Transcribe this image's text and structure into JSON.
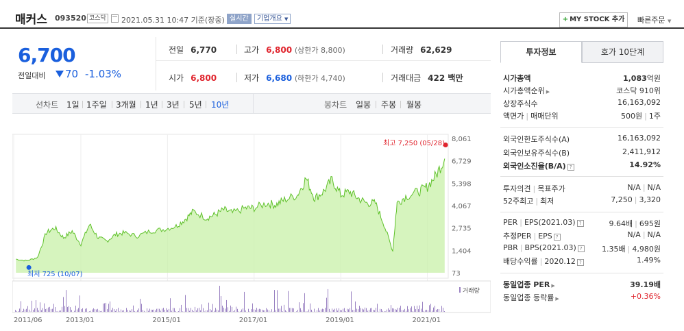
{
  "header": {
    "company_name": "매커스",
    "stock_code": "093520",
    "market": "코스닥",
    "datetime": "2021.05.31 10:47 기준(장중)",
    "realtime_label": "실시간",
    "overview_label": "기업개요",
    "mystock_label": "MY STOCK 추가",
    "quick_order_label": "빠른주문"
  },
  "price": {
    "current": "6,700",
    "change_label": "전일대비",
    "change": "70",
    "rate": "-1.03%",
    "color": "#1a5fdd"
  },
  "quotes": {
    "prev_label": "전일",
    "prev": "6,770",
    "high_label": "고가",
    "high": "6,800",
    "upper_limit": "(상한가 8,800)",
    "volume_label": "거래량",
    "volume": "62,629",
    "open_label": "시가",
    "open": "6,800",
    "low_label": "저가",
    "low": "6,680",
    "lower_limit": "(하한가 4,740)",
    "amount_label": "거래대금",
    "amount": "422 백만"
  },
  "chart_tabs": {
    "line_label": "선차트",
    "line_items": [
      "1일",
      "1주일",
      "3개월",
      "1년",
      "3년",
      "5년",
      "10년"
    ],
    "selected": "10년",
    "candle_label": "봉차트",
    "candle_items": [
      "일봉",
      "주봉",
      "월봉"
    ]
  },
  "chart_data": {
    "type": "area",
    "y_ticks": [
      "8,061",
      "6,729",
      "5,398",
      "4,067",
      "2,735",
      "1,404",
      "73"
    ],
    "x_ticks": [
      "2011/06",
      "2013/01",
      "2015/01",
      "2017/01",
      "2019/01",
      "2021/01"
    ],
    "max_label": "최고 7,250 (05/28)",
    "min_label": "최저 725 (10/07)",
    "volume_label": "거래량",
    "line_color": "#5fc12a",
    "fill_color": "#c8f0a8",
    "max_color": "#e0242d",
    "min_color": "#1a5fdd",
    "x": [
      2011.5,
      2011.75,
      2012.0,
      2012.2,
      2012.4,
      2012.6,
      2012.8,
      2013.0,
      2013.2,
      2013.4,
      2013.6,
      2013.8,
      2014.0,
      2014.3,
      2014.6,
      2014.9,
      2015.2,
      2015.4,
      2015.6,
      2015.9,
      2016.1,
      2016.3,
      2016.5,
      2016.8,
      2017.0,
      2017.3,
      2017.5,
      2017.7,
      2018.0,
      2018.2,
      2018.4,
      2018.6,
      2018.8,
      2019.0,
      2019.2,
      2019.4,
      2019.6,
      2019.8,
      2020.0,
      2020.2,
      2020.3,
      2020.5,
      2020.8,
      2021.0,
      2021.2,
      2021.4
    ],
    "values": [
      900,
      800,
      1000,
      2500,
      2800,
      2200,
      2600,
      1800,
      3000,
      2200,
      2000,
      2400,
      2500,
      2300,
      2600,
      2700,
      2900,
      3300,
      3800,
      3400,
      3600,
      3900,
      3700,
      4000,
      4000,
      4300,
      4200,
      4500,
      4800,
      5800,
      4600,
      5000,
      5700,
      4800,
      5000,
      4600,
      4300,
      4300,
      3000,
      1400,
      4300,
      4700,
      5000,
      5300,
      6000,
      7000
    ]
  },
  "info_panel": {
    "tab_invest": "투자정보",
    "tab_hoga": "호가 10단계",
    "market_cap_label": "시가총액",
    "market_cap": "1,083",
    "market_cap_unit": "억원",
    "cap_rank_label": "시가총액순위",
    "cap_rank": "코스닥 910위",
    "shares_label": "상장주식수",
    "shares": "16,163,092",
    "par_label": "액면가",
    "unit_label": "매매단위",
    "par": "500원",
    "unit": "1주",
    "foreign_limit_label": "외국인한도주식수(A)",
    "foreign_limit": "16,163,092",
    "foreign_hold_label": "외국인보유주식수(B)",
    "foreign_hold": "2,411,912",
    "foreign_rate_label": "외국인소진율(B/A)",
    "foreign_rate": "14.92%",
    "opinion_label": "투자의견",
    "target_label": "목표주가",
    "opinion": "N/A",
    "target": "N/A",
    "w52_high_label": "52주최고",
    "w52_low_label": "최저",
    "w52_high": "7,250",
    "w52_low": "3,320",
    "per_label": "PER",
    "eps_label": "EPS(2021.03)",
    "per": "9.64배",
    "eps": "695원",
    "est_per_label": "추정PER",
    "est_eps_label": "EPS",
    "est_per": "N/A",
    "est_eps": "N/A",
    "pbr_label": "PBR",
    "bps_label": "BPS(2021.03)",
    "pbr": "1.35배",
    "bps": "4,980원",
    "div_label": "배당수익률",
    "div_year": "2020.12",
    "div": "1.49%",
    "sector_per_label": "동일업종 PER",
    "sector_per": "39.19배",
    "sector_rate_label": "동일업종 등락률",
    "sector_rate": "+0.36%"
  }
}
